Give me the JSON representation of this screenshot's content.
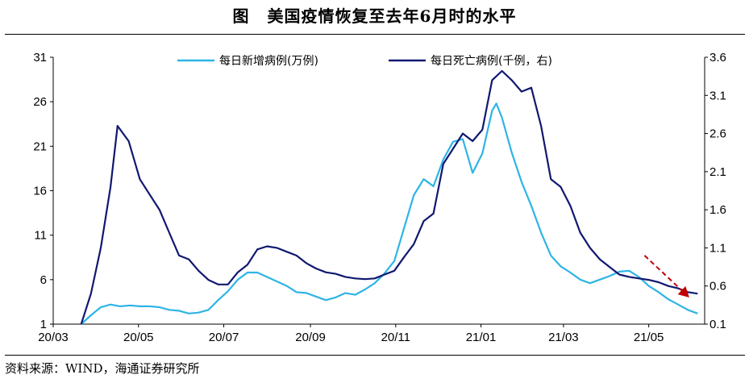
{
  "title": {
    "fig_label": "图",
    "text": "美国疫情恢复至去年6月时的水平"
  },
  "source": "资料来源：WIND，海通证券研究所",
  "chart_data": {
    "type": "line",
    "x_tick_labels": [
      "20/03",
      "20/05",
      "20/07",
      "20/09",
      "20/11",
      "21/01",
      "21/03",
      "21/05"
    ],
    "x_range": [
      "2020-03-01",
      "2021-06-10"
    ],
    "y_left": {
      "ylim": [
        1,
        31
      ],
      "ticks": [
        1,
        6,
        11,
        16,
        21,
        26,
        31
      ]
    },
    "y_right": {
      "ylim": [
        0.1,
        3.6
      ],
      "ticks": [
        "0.1",
        "0.6",
        "1.1",
        "1.6",
        "2.1",
        "2.6",
        "3.1",
        "3.6"
      ]
    },
    "grid": false,
    "legend_position": "top",
    "series": [
      {
        "name": "每日新增病例(万例)",
        "axis": "left",
        "color": "#2eb4e6",
        "points": [
          [
            "2020-03-21",
            1.0
          ],
          [
            "2020-03-28",
            2.0
          ],
          [
            "2020-04-04",
            2.9
          ],
          [
            "2020-04-11",
            3.2
          ],
          [
            "2020-04-18",
            3.0
          ],
          [
            "2020-04-25",
            3.1
          ],
          [
            "2020-05-02",
            3.0
          ],
          [
            "2020-05-09",
            3.0
          ],
          [
            "2020-05-16",
            2.9
          ],
          [
            "2020-05-23",
            2.6
          ],
          [
            "2020-05-30",
            2.5
          ],
          [
            "2020-06-06",
            2.2
          ],
          [
            "2020-06-13",
            2.3
          ],
          [
            "2020-06-20",
            2.6
          ],
          [
            "2020-06-27",
            3.7
          ],
          [
            "2020-07-04",
            4.7
          ],
          [
            "2020-07-11",
            6.0
          ],
          [
            "2020-07-18",
            6.8
          ],
          [
            "2020-07-25",
            6.8
          ],
          [
            "2020-08-01",
            6.3
          ],
          [
            "2020-08-08",
            5.8
          ],
          [
            "2020-08-15",
            5.3
          ],
          [
            "2020-08-22",
            4.6
          ],
          [
            "2020-08-29",
            4.5
          ],
          [
            "2020-09-05",
            4.1
          ],
          [
            "2020-09-12",
            3.7
          ],
          [
            "2020-09-19",
            4.0
          ],
          [
            "2020-09-26",
            4.5
          ],
          [
            "2020-10-03",
            4.3
          ],
          [
            "2020-10-10",
            4.9
          ],
          [
            "2020-10-17",
            5.6
          ],
          [
            "2020-10-24",
            6.7
          ],
          [
            "2020-10-31",
            8.1
          ],
          [
            "2020-11-07",
            11.8
          ],
          [
            "2020-11-14",
            15.5
          ],
          [
            "2020-11-21",
            17.3
          ],
          [
            "2020-11-28",
            16.5
          ],
          [
            "2020-12-05",
            19.5
          ],
          [
            "2020-12-12",
            21.5
          ],
          [
            "2020-12-19",
            21.8
          ],
          [
            "2020-12-26",
            18.0
          ],
          [
            "2021-01-02",
            20.2
          ],
          [
            "2021-01-09",
            25.0
          ],
          [
            "2021-01-12",
            25.8
          ],
          [
            "2021-01-16",
            24.2
          ],
          [
            "2021-01-23",
            20.3
          ],
          [
            "2021-01-30",
            17.0
          ],
          [
            "2021-02-06",
            14.3
          ],
          [
            "2021-02-13",
            11.3
          ],
          [
            "2021-02-20",
            8.7
          ],
          [
            "2021-02-27",
            7.5
          ],
          [
            "2021-03-06",
            6.8
          ],
          [
            "2021-03-13",
            6.0
          ],
          [
            "2021-03-20",
            5.6
          ],
          [
            "2021-03-27",
            6.0
          ],
          [
            "2021-04-03",
            6.4
          ],
          [
            "2021-04-10",
            6.9
          ],
          [
            "2021-04-17",
            7.0
          ],
          [
            "2021-04-24",
            6.3
          ],
          [
            "2021-05-01",
            5.3
          ],
          [
            "2021-05-08",
            4.6
          ],
          [
            "2021-05-15",
            3.8
          ],
          [
            "2021-05-22",
            3.2
          ],
          [
            "2021-05-29",
            2.6
          ],
          [
            "2021-06-05",
            2.2
          ]
        ]
      },
      {
        "name": "每日死亡病例(千例，右)",
        "axis": "right",
        "color": "#101870",
        "points": [
          [
            "2020-03-21",
            0.1
          ],
          [
            "2020-03-28",
            0.5
          ],
          [
            "2020-04-04",
            1.1
          ],
          [
            "2020-04-11",
            1.9
          ],
          [
            "2020-04-16",
            2.7
          ],
          [
            "2020-04-20",
            2.6
          ],
          [
            "2020-04-24",
            2.5
          ],
          [
            "2020-05-02",
            2.0
          ],
          [
            "2020-05-09",
            1.8
          ],
          [
            "2020-05-16",
            1.6
          ],
          [
            "2020-05-23",
            1.3
          ],
          [
            "2020-05-30",
            1.0
          ],
          [
            "2020-06-06",
            0.95
          ],
          [
            "2020-06-13",
            0.8
          ],
          [
            "2020-06-20",
            0.68
          ],
          [
            "2020-06-27",
            0.62
          ],
          [
            "2020-07-04",
            0.62
          ],
          [
            "2020-07-11",
            0.78
          ],
          [
            "2020-07-18",
            0.88
          ],
          [
            "2020-07-25",
            1.08
          ],
          [
            "2020-08-01",
            1.12
          ],
          [
            "2020-08-08",
            1.1
          ],
          [
            "2020-08-15",
            1.05
          ],
          [
            "2020-08-22",
            1.0
          ],
          [
            "2020-08-29",
            0.9
          ],
          [
            "2020-09-05",
            0.83
          ],
          [
            "2020-09-12",
            0.78
          ],
          [
            "2020-09-19",
            0.76
          ],
          [
            "2020-09-26",
            0.72
          ],
          [
            "2020-10-03",
            0.7
          ],
          [
            "2020-10-10",
            0.69
          ],
          [
            "2020-10-17",
            0.7
          ],
          [
            "2020-10-24",
            0.75
          ],
          [
            "2020-10-31",
            0.8
          ],
          [
            "2020-11-07",
            0.98
          ],
          [
            "2020-11-14",
            1.15
          ],
          [
            "2020-11-21",
            1.45
          ],
          [
            "2020-11-28",
            1.55
          ],
          [
            "2020-12-05",
            2.2
          ],
          [
            "2020-12-12",
            2.4
          ],
          [
            "2020-12-19",
            2.6
          ],
          [
            "2020-12-26",
            2.5
          ],
          [
            "2021-01-02",
            2.65
          ],
          [
            "2021-01-09",
            3.3
          ],
          [
            "2021-01-16",
            3.42
          ],
          [
            "2021-01-23",
            3.3
          ],
          [
            "2021-01-30",
            3.15
          ],
          [
            "2021-02-06",
            3.2
          ],
          [
            "2021-02-13",
            2.7
          ],
          [
            "2021-02-20",
            2.0
          ],
          [
            "2021-02-27",
            1.9
          ],
          [
            "2021-03-06",
            1.65
          ],
          [
            "2021-03-13",
            1.3
          ],
          [
            "2021-03-20",
            1.1
          ],
          [
            "2021-03-27",
            0.95
          ],
          [
            "2021-04-03",
            0.85
          ],
          [
            "2021-04-10",
            0.75
          ],
          [
            "2021-04-17",
            0.72
          ],
          [
            "2021-04-24",
            0.7
          ],
          [
            "2021-05-01",
            0.68
          ],
          [
            "2021-05-08",
            0.65
          ],
          [
            "2021-05-15",
            0.6
          ],
          [
            "2021-05-22",
            0.57
          ],
          [
            "2021-05-29",
            0.52
          ],
          [
            "2021-06-05",
            0.5
          ]
        ]
      }
    ],
    "annotation": {
      "type": "dashed-arrow",
      "color": "#c00000",
      "from": [
        "2021-04-28",
        1.0
      ],
      "to": [
        "2021-05-30",
        0.45
      ],
      "axis": "right"
    }
  }
}
